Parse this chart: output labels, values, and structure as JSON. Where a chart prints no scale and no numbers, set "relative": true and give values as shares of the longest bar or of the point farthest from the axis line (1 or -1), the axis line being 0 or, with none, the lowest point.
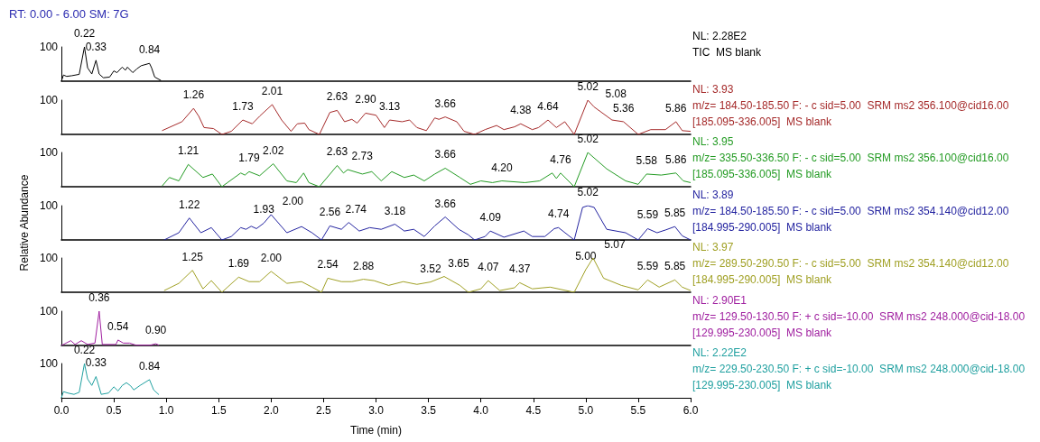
{
  "chart_data": [
    {
      "type": "line",
      "title": "RT: 0.00 - 6.00 SM: 7G",
      "color": "#000000",
      "relative": true,
      "xlim": [
        0,
        6
      ],
      "tick_labels": false,
      "x": [
        0,
        0.02,
        0.05,
        0.1,
        0.17,
        0.22,
        0.25,
        0.29,
        0.33,
        0.36,
        0.4,
        0.46,
        0.5,
        0.53,
        0.58,
        0.61,
        0.63,
        0.68,
        0.72,
        0.76,
        0.84,
        0.86,
        0.89,
        0.95
      ],
      "values": [
        0,
        0.18,
        0.14,
        0.16,
        0.2,
        1,
        0.39,
        0.21,
        0.61,
        0.21,
        0.1,
        0.12,
        0.3,
        0.25,
        0.41,
        0.32,
        0.41,
        0.25,
        0.36,
        0.45,
        0.52,
        0.39,
        0.12,
        0.02
      ],
      "annotations": [
        "100",
        {
          "text": "0.22",
          "x": 0.22,
          "y": 1
        },
        {
          "text": "0.33",
          "x": 0.33,
          "y": 0.61
        },
        {
          "text": "0.84",
          "x": 0.84,
          "y": 0.52
        },
        "NL: 2.28E2",
        "TIC  MS blank"
      ]
    },
    {
      "type": "line",
      "color": "#a52a2a",
      "relative": true,
      "xlim": [
        0,
        6
      ],
      "tick_labels": false,
      "x": [
        0.96,
        1.15,
        1.26,
        1.31,
        1.36,
        1.45,
        1.53,
        1.62,
        1.73,
        1.82,
        1.89,
        2.01,
        2.1,
        2.19,
        2.25,
        2.32,
        2.36,
        2.46,
        2.56,
        2.63,
        2.7,
        2.77,
        2.82,
        2.9,
        3.0,
        3.08,
        3.13,
        3.25,
        3.32,
        3.39,
        3.48,
        3.56,
        3.6,
        3.66,
        3.77,
        3.84,
        3.94,
        4.04,
        4.15,
        4.22,
        4.32,
        4.38,
        4.49,
        4.55,
        4.64,
        4.72,
        4.8,
        4.89,
        5.02,
        5.08,
        5.25,
        5.36,
        5.5,
        5.62,
        5.76,
        5.86,
        5.92,
        6.0
      ],
      "values": [
        0.11,
        0.37,
        0.76,
        0.53,
        0.2,
        0.17,
        0,
        0.09,
        0.42,
        0.31,
        0.53,
        0.87,
        0.42,
        0.09,
        0.31,
        0.33,
        0.14,
        0,
        0.64,
        0.7,
        0.37,
        0.44,
        0.33,
        0.62,
        0.56,
        0.2,
        0.42,
        0.37,
        0.42,
        0.2,
        0.11,
        0.48,
        0.44,
        0.51,
        0.37,
        0.09,
        0,
        0.14,
        0.26,
        0.14,
        0.22,
        0.31,
        0.14,
        0.2,
        0.42,
        0.2,
        0.37,
        0,
        1,
        0.8,
        0.42,
        0.37,
        0,
        0.14,
        0.14,
        0.37,
        0.11,
        0.09
      ],
      "annotations": [
        "100",
        {
          "text": "1.26",
          "x": 1.26,
          "y": 0.76
        },
        {
          "text": "1.73",
          "x": 1.73,
          "y": 0.42
        },
        {
          "text": "2.01",
          "x": 2.01,
          "y": 0.87
        },
        {
          "text": "2.63",
          "x": 2.63,
          "y": 0.7
        },
        {
          "text": "2.90",
          "x": 2.9,
          "y": 0.62
        },
        {
          "text": "3.13",
          "x": 3.13,
          "y": 0.42
        },
        {
          "text": "3.66",
          "x": 3.66,
          "y": 0.51
        },
        {
          "text": "4.38",
          "x": 4.38,
          "y": 0.31
        },
        {
          "text": "4.64",
          "x": 4.64,
          "y": 0.42
        },
        {
          "text": "5.02",
          "x": 5.02,
          "y": 1
        },
        {
          "text": "5.08",
          "x": 5.08,
          "y": 0.8
        },
        {
          "text": "5.36",
          "x": 5.36,
          "y": 0.37
        },
        {
          "text": "5.86",
          "x": 5.86,
          "y": 0.37
        },
        "NL: 3.93",
        "m/z= 184.50-185.50 F: - c sid=5.00  SRM ms2 356.100@cid16.00",
        "[185.095-336.005]  MS blank"
      ]
    },
    {
      "type": "line",
      "color": "#239b23",
      "relative": true,
      "xlim": [
        0,
        6
      ],
      "tick_labels": false,
      "x": [
        0.96,
        1.03,
        1.12,
        1.21,
        1.35,
        1.44,
        1.53,
        1.71,
        1.75,
        1.79,
        1.89,
        2.02,
        2.15,
        2.24,
        2.31,
        2.36,
        2.46,
        2.63,
        2.69,
        2.73,
        2.87,
        2.96,
        3.05,
        3.15,
        3.27,
        3.36,
        3.46,
        3.56,
        3.66,
        3.8,
        3.9,
        4.0,
        4.11,
        4.2,
        4.42,
        4.56,
        4.68,
        4.72,
        4.76,
        4.89,
        5.02,
        5.2,
        5.38,
        5.5,
        5.58,
        5.72,
        5.86,
        5.93,
        6.0
      ],
      "values": [
        0.02,
        0.27,
        0.17,
        0.65,
        0.27,
        0.37,
        0,
        0.4,
        0.34,
        0.44,
        0.32,
        0.67,
        0.17,
        0.12,
        0.4,
        0.12,
        0,
        0.62,
        0.4,
        0.5,
        0.37,
        0.44,
        0.17,
        0.44,
        0.27,
        0.34,
        0.17,
        0.37,
        0.54,
        0.27,
        0.07,
        0.17,
        0.12,
        0.17,
        0.12,
        0.17,
        0.4,
        0.24,
        0.4,
        0,
        1,
        0.52,
        0.17,
        0.07,
        0.37,
        0.34,
        0.4,
        0.17,
        0.12
      ],
      "annotations": [
        "100",
        {
          "text": "1.21",
          "x": 1.21,
          "y": 0.65
        },
        {
          "text": "1.79",
          "x": 1.79,
          "y": 0.44
        },
        {
          "text": "2.02",
          "x": 2.02,
          "y": 0.67
        },
        {
          "text": "2.63",
          "x": 2.63,
          "y": 0.62
        },
        {
          "text": "2.73",
          "x": 2.73,
          "y": 0.5
        },
        {
          "text": "3.66",
          "x": 3.66,
          "y": 0.54
        },
        {
          "text": "4.20",
          "x": 4.2,
          "y": 0.17
        },
        {
          "text": "4.76",
          "x": 4.76,
          "y": 0.4
        },
        {
          "text": "5.02",
          "x": 5.02,
          "y": 1
        },
        {
          "text": "5.58",
          "x": 5.58,
          "y": 0.37
        },
        {
          "text": "5.86",
          "x": 5.86,
          "y": 0.4
        },
        "NL: 3.95",
        "m/z= 335.50-336.50 F: - c sid=5.00  SRM ms2 356.100@cid16.00",
        "[185.095-336.005]  MS blank"
      ]
    },
    {
      "type": "line",
      "color": "#2424a0",
      "ylabel": "Relative Abundance",
      "relative": true,
      "xlim": [
        0,
        6
      ],
      "tick_labels": false,
      "x": [
        0.98,
        1.12,
        1.22,
        1.33,
        1.43,
        1.53,
        1.62,
        1.71,
        1.76,
        1.81,
        1.86,
        1.93,
        2.0,
        2.15,
        2.29,
        2.39,
        2.48,
        2.56,
        2.67,
        2.74,
        2.84,
        2.94,
        3.05,
        3.18,
        3.27,
        3.36,
        3.46,
        3.56,
        3.66,
        3.79,
        3.88,
        3.94,
        4.04,
        4.09,
        4.22,
        4.41,
        4.49,
        4.61,
        4.7,
        4.74,
        4.89,
        4.97,
        5.02,
        5.08,
        5.2,
        5.38,
        5.5,
        5.59,
        5.68,
        5.76,
        5.85,
        5.92,
        6.0
      ],
      "values": [
        0,
        0.21,
        0.64,
        0.21,
        0.36,
        0,
        0.1,
        0.36,
        0.31,
        0.4,
        0.33,
        0.49,
        0.74,
        0.21,
        0.39,
        0.21,
        0,
        0.41,
        0.31,
        0.51,
        0.26,
        0.36,
        0.31,
        0.46,
        0.26,
        0.31,
        0.1,
        0.41,
        0.67,
        0.31,
        0.15,
        0,
        0.1,
        0.26,
        0.08,
        0.26,
        0.1,
        0.1,
        0.33,
        0.36,
        0,
        0.95,
        1,
        0.95,
        0.31,
        0.21,
        0,
        0.33,
        0.21,
        0.29,
        0.39,
        0.12,
        0
      ],
      "annotations": [
        "100",
        {
          "text": "1.22",
          "x": 1.22,
          "y": 0.64
        },
        {
          "text": "1.93",
          "x": 1.93,
          "y": 0.49
        },
        {
          "text": "2.00",
          "x": 2.0,
          "y": 0.74
        },
        {
          "text": "2.56",
          "x": 2.56,
          "y": 0.41
        },
        {
          "text": "2.74",
          "x": 2.74,
          "y": 0.51
        },
        {
          "text": "3.18",
          "x": 3.18,
          "y": 0.46
        },
        {
          "text": "3.66",
          "x": 3.66,
          "y": 0.67
        },
        {
          "text": "4.09",
          "x": 4.09,
          "y": 0.26
        },
        {
          "text": "4.74",
          "x": 4.74,
          "y": 0.36
        },
        {
          "text": "5.02",
          "x": 5.02,
          "y": 1
        },
        {
          "text": "5.59",
          "x": 5.59,
          "y": 0.33
        },
        {
          "text": "5.85",
          "x": 5.85,
          "y": 0.39
        },
        "NL: 3.89",
        "m/z= 184.50-185.50 F: - c sid=5.00  SRM ms2 354.140@cid12.00",
        "[184.995-290.005]  MS blank"
      ]
    },
    {
      "type": "line",
      "color": "#a0a024",
      "relative": true,
      "xlim": [
        0,
        6
      ],
      "tick_labels": false,
      "x": [
        0.98,
        1.12,
        1.25,
        1.35,
        1.43,
        1.53,
        1.69,
        1.79,
        1.89,
        2.0,
        2.15,
        2.29,
        2.39,
        2.48,
        2.54,
        2.67,
        2.77,
        2.88,
        2.98,
        3.12,
        3.26,
        3.39,
        3.52,
        3.65,
        3.8,
        3.88,
        4.0,
        4.07,
        4.18,
        4.32,
        4.37,
        4.49,
        4.66,
        4.89,
        5.0,
        5.07,
        5.17,
        5.34,
        5.5,
        5.59,
        5.7,
        5.85,
        5.92,
        6.0
      ],
      "values": [
        0.05,
        0.26,
        0.64,
        0.1,
        0.34,
        0,
        0.44,
        0.31,
        0.31,
        0.61,
        0.26,
        0.31,
        0.15,
        0,
        0.41,
        0.31,
        0.31,
        0.38,
        0.34,
        0.2,
        0.31,
        0.23,
        0.3,
        0.46,
        0.2,
        0,
        0.1,
        0.34,
        0.05,
        0.13,
        0.28,
        0.1,
        0.15,
        0,
        0.66,
        1,
        0.41,
        0.2,
        0.07,
        0.36,
        0.15,
        0.36,
        0.15,
        0.05
      ],
      "annotations": [
        "100",
        {
          "text": "1.25",
          "x": 1.25,
          "y": 0.64
        },
        {
          "text": "1.69",
          "x": 1.69,
          "y": 0.44
        },
        {
          "text": "2.00",
          "x": 2.0,
          "y": 0.61
        },
        {
          "text": "2.54",
          "x": 2.54,
          "y": 0.41
        },
        {
          "text": "2.88",
          "x": 2.88,
          "y": 0.38
        },
        {
          "text": "3.52",
          "x": 3.52,
          "y": 0.3
        },
        {
          "text": "3.65",
          "x": 3.65,
          "y": 0.46
        },
        {
          "text": "4.07",
          "x": 4.07,
          "y": 0.34
        },
        {
          "text": "4.37",
          "x": 4.37,
          "y": 0.28
        },
        {
          "text": "5.00",
          "x": 5.0,
          "y": 0.66
        },
        {
          "text": "5.07",
          "x": 5.07,
          "y": 1
        },
        {
          "text": "5.59",
          "x": 5.59,
          "y": 0.36
        },
        {
          "text": "5.85",
          "x": 5.85,
          "y": 0.36
        },
        "NL: 3.97",
        "m/z= 289.50-290.50 F: - c sid=5.00  SRM ms2 354.140@cid12.00",
        "[184.995-290.005]  MS blank"
      ]
    },
    {
      "type": "line",
      "color": "#a020a0",
      "relative": true,
      "xlim": [
        0,
        6
      ],
      "tick_labels": false,
      "x": [
        0,
        0.09,
        0.13,
        0.19,
        0.25,
        0.32,
        0.36,
        0.39,
        0.52,
        0.54,
        0.59,
        0.65,
        0.71,
        0.85,
        0.9,
        0.93
      ],
      "values": [
        0,
        0.14,
        0.03,
        0.14,
        0.03,
        0.07,
        1,
        0.03,
        0.03,
        0.16,
        0.07,
        0.07,
        0.01,
        0.01,
        0.05,
        0.01
      ],
      "annotations": [
        "100",
        {
          "text": "0.36",
          "x": 0.36,
          "y": 1
        },
        {
          "text": "0.54",
          "x": 0.54,
          "y": 0.16
        },
        {
          "text": "0.90",
          "x": 0.9,
          "y": 0.05
        },
        "NL: 2.90E1",
        "m/z= 129.50-130.50 F: + c sid=-10.00  SRM ms2 248.000@cid-18.00",
        "[129.995-230.005]  MS blank"
      ]
    },
    {
      "type": "line",
      "color": "#20a0a0",
      "xlabel": "Time (min)",
      "relative": true,
      "xlim": [
        0,
        6
      ],
      "xticks": [
        {
          "value": 0,
          "label": "0.0"
        },
        {
          "value": 0.5,
          "label": "0.5"
        },
        {
          "value": 1,
          "label": "1.0"
        },
        {
          "value": 1.5,
          "label": "1.5"
        },
        {
          "value": 2,
          "label": "2.0"
        },
        {
          "value": 2.5,
          "label": "2.5"
        },
        {
          "value": 3,
          "label": "3.0"
        },
        {
          "value": 3.5,
          "label": "3.5"
        },
        {
          "value": 4,
          "label": "4.0"
        },
        {
          "value": 4.5,
          "label": "4.5"
        },
        {
          "value": 5,
          "label": "5.0"
        },
        {
          "value": 5.5,
          "label": "5.5"
        },
        {
          "value": 6,
          "label": "6.0"
        }
      ],
      "x": [
        0,
        0.02,
        0.06,
        0.12,
        0.17,
        0.22,
        0.25,
        0.29,
        0.33,
        0.38,
        0.45,
        0.5,
        0.54,
        0.58,
        0.62,
        0.66,
        0.69,
        0.75,
        0.84,
        0.88,
        0.93
      ],
      "values": [
        0,
        0.18,
        0.14,
        0.1,
        0.16,
        1,
        0.55,
        0.36,
        0.62,
        0.1,
        0.14,
        0.32,
        0.2,
        0.36,
        0.44,
        0.35,
        0.23,
        0.36,
        0.53,
        0.23,
        0.09
      ],
      "annotations": [
        "100",
        {
          "text": "0.22",
          "x": 0.22,
          "y": 1
        },
        {
          "text": "0.33",
          "x": 0.33,
          "y": 0.62
        },
        {
          "text": "0.84",
          "x": 0.84,
          "y": 0.53
        },
        "NL: 2.22E2",
        "m/z= 229.50-230.50 F: + c sid=-10.00  SRM ms2 248.000@cid-18.00",
        "[129.995-230.005]  MS blank"
      ]
    }
  ]
}
